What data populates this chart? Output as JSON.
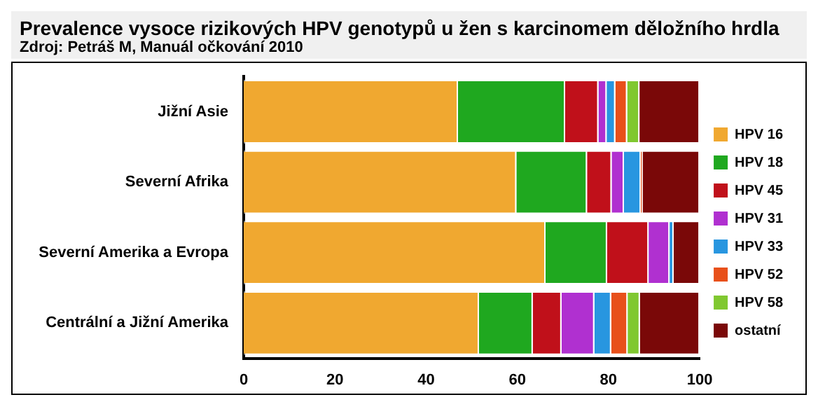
{
  "chart_data": {
    "type": "bar",
    "orientation": "horizontal",
    "stacked": true,
    "title": "Prevalence vysoce rizikových HPV genotypů u žen s karcinomem děložního hrdla",
    "subtitle": "Zdroj: Petráš M, Manuál očkování 2010",
    "categories": [
      "Jižní Asie",
      "Severní Afrika",
      "Severní Amerika a Evropa",
      "Centrální a Jižní Amerika"
    ],
    "series": [
      {
        "name": "HPV 16",
        "color": "#f0a830",
        "values": [
          47,
          59.8,
          66.2,
          51.6
        ]
      },
      {
        "name": "HPV 18",
        "color": "#1fa81f",
        "values": [
          23.5,
          15.5,
          13.5,
          11.8
        ]
      },
      {
        "name": "HPV 45",
        "color": "#c0101a",
        "values": [
          7.3,
          5.4,
          9.1,
          6.3
        ]
      },
      {
        "name": "HPV 31",
        "color": "#b030d0",
        "values": [
          1.8,
          2.7,
          4.6,
          7.2
        ]
      },
      {
        "name": "HPV 33",
        "color": "#2896e0",
        "values": [
          1.9,
          3.7,
          0.9,
          3.7
        ]
      },
      {
        "name": "HPV 52",
        "color": "#e8501a",
        "values": [
          2.6,
          0.4,
          0,
          3.6
        ]
      },
      {
        "name": "HPV 58",
        "color": "#80c830",
        "values": [
          2.7,
          0,
          0,
          2.7
        ]
      },
      {
        "name": "ostatní",
        "color": "#7a0808",
        "values": [
          13.2,
          12.5,
          5.7,
          13.1
        ]
      }
    ],
    "xlim": [
      0,
      100
    ],
    "xticks": [
      0,
      20,
      40,
      60,
      80,
      100
    ],
    "grid": false,
    "legend": "right"
  }
}
